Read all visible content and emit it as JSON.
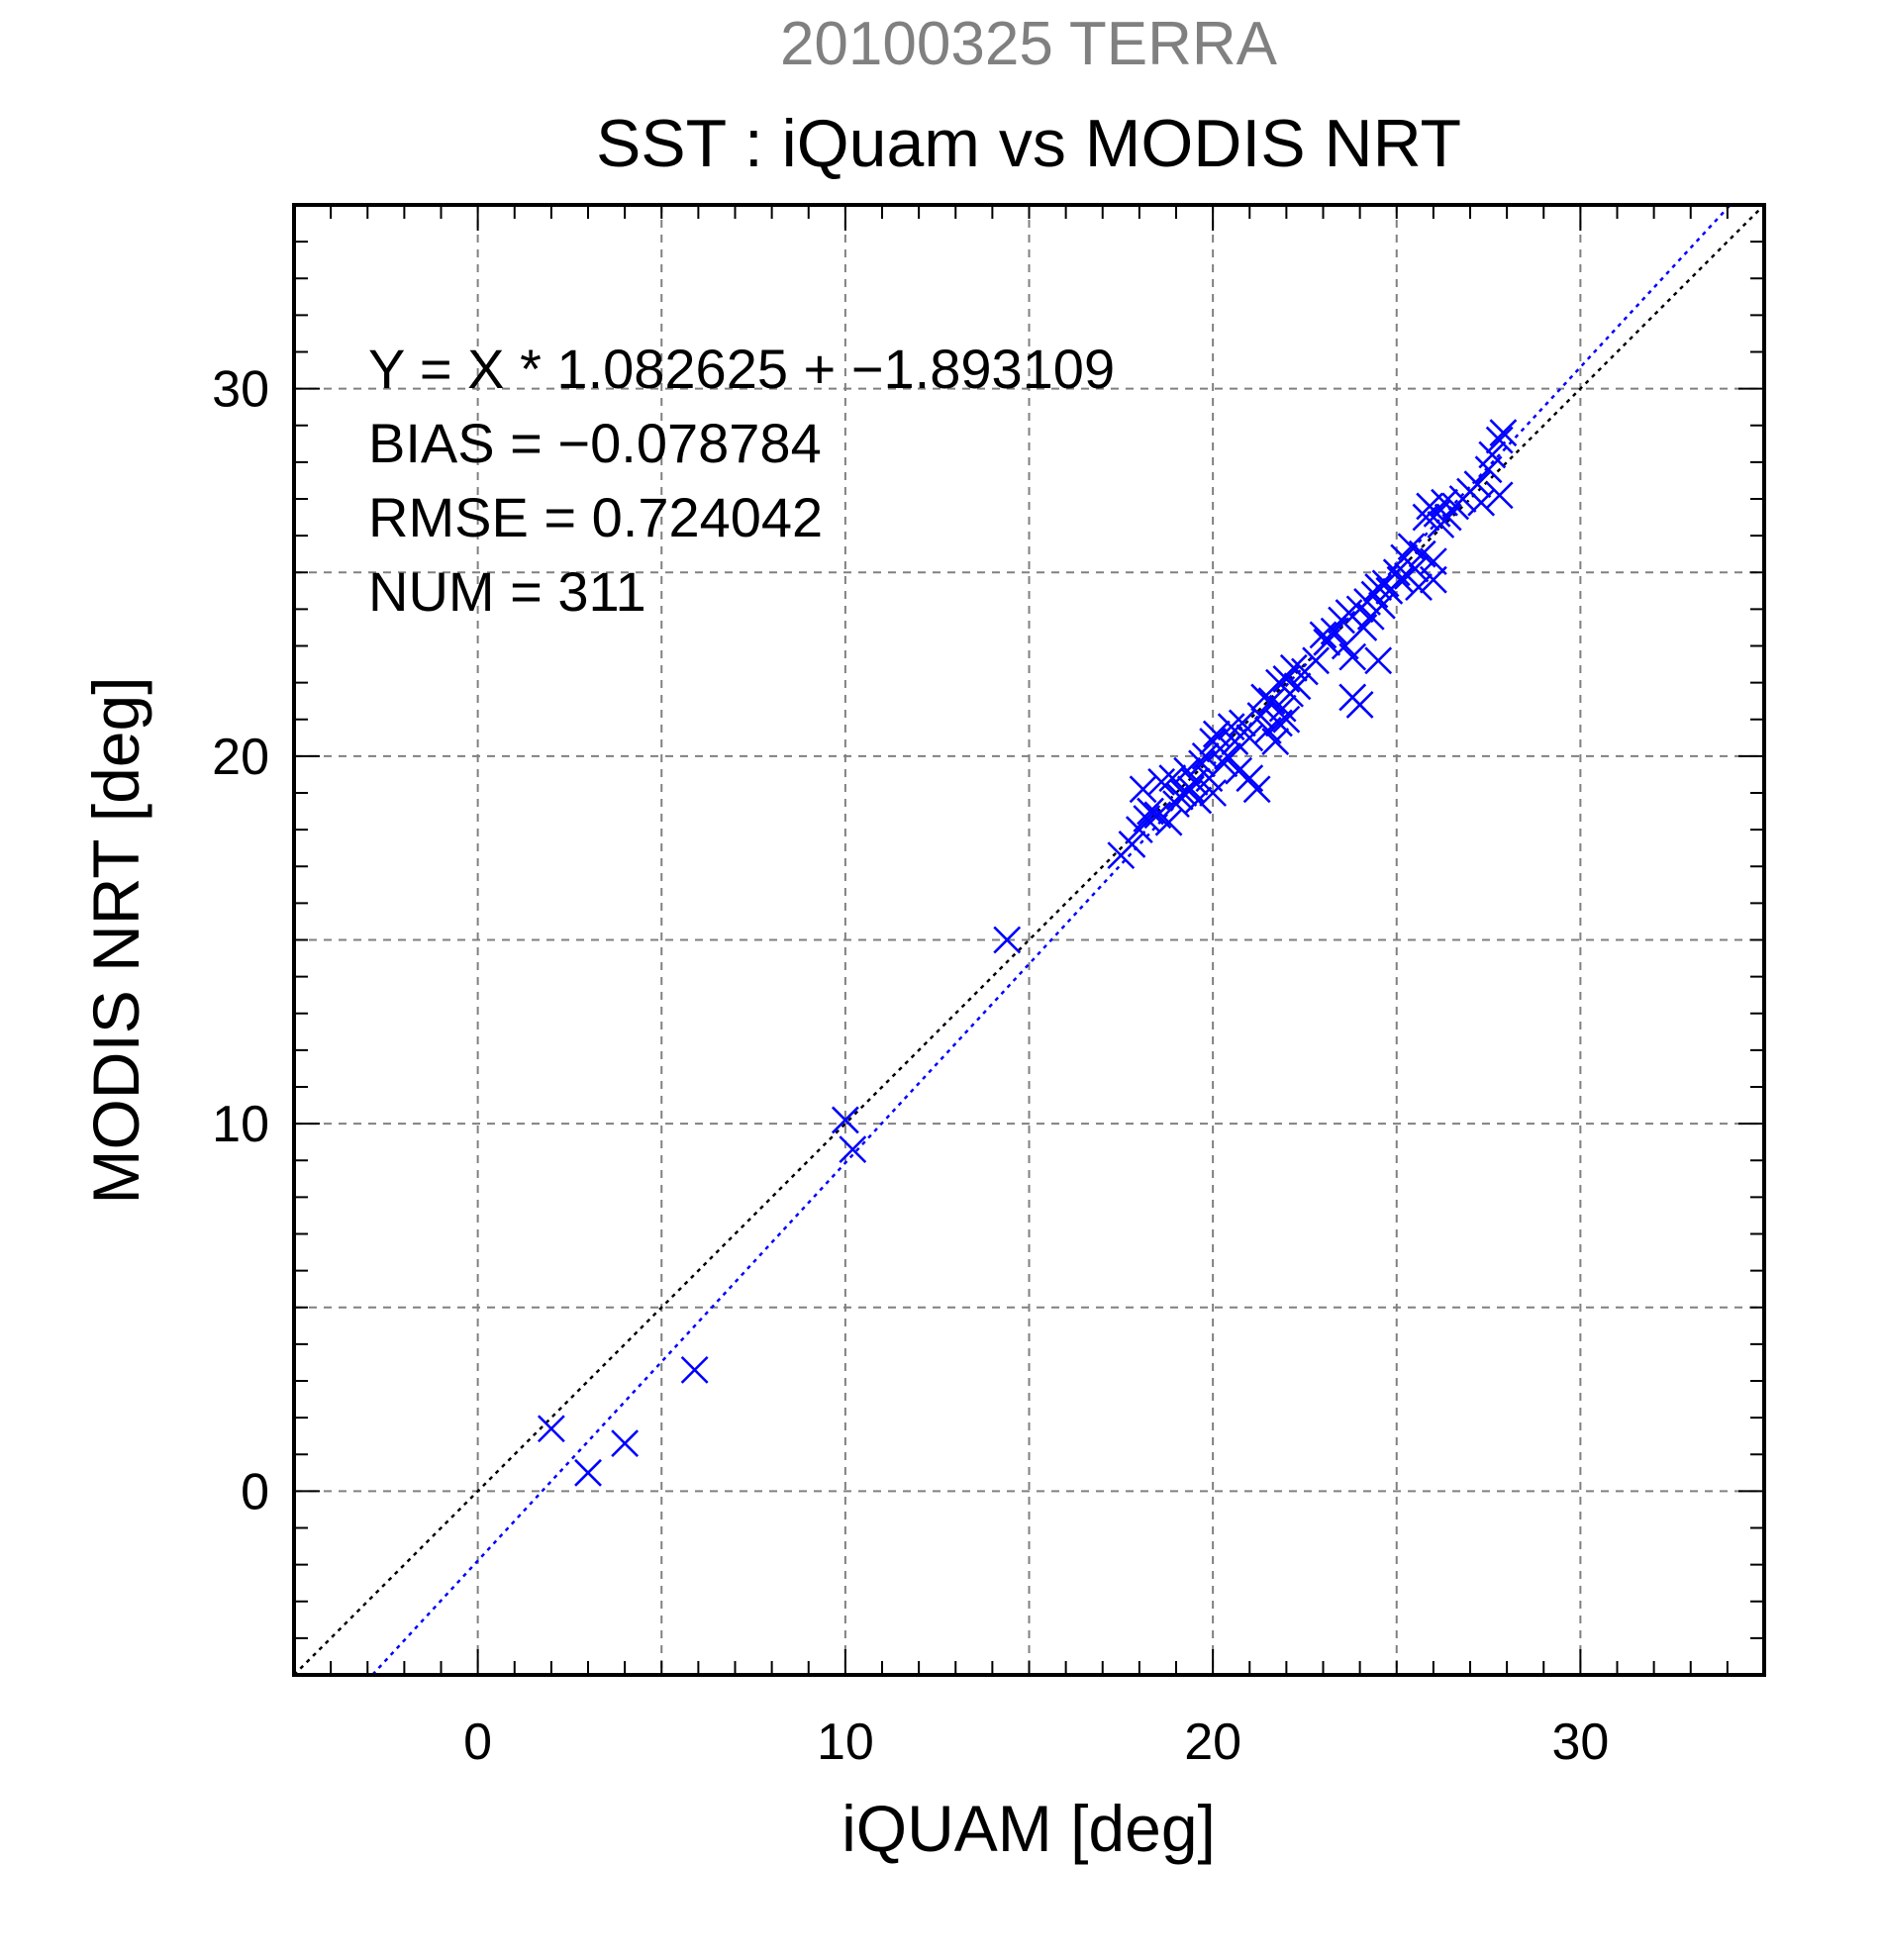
{
  "chart_data": {
    "type": "scatter",
    "title": "20100325 TERRA",
    "subtitle": "SST : iQuam vs MODIS NRT",
    "xlabel": "iQUAM [deg]",
    "ylabel": "MODIS NRT [deg]",
    "xlim": [
      -5,
      35
    ],
    "ylim": [
      -5,
      35
    ],
    "xticks": [
      0,
      10,
      20,
      30
    ],
    "yticks": [
      0,
      10,
      20,
      30
    ],
    "x_tick_labels": [
      "0",
      "10",
      "20",
      "30"
    ],
    "y_tick_labels": [
      "0",
      "10",
      "20",
      "30"
    ],
    "grid": true,
    "marker": "x",
    "colors": {
      "points": "#0000ff",
      "fit_line": "#0000ff",
      "one_to_one": "#000000",
      "grid": "#808080"
    },
    "stats": [
      "Y = X * 1.082625 + −1.893109",
      "BIAS = −0.078784",
      "RMSE = 0.724042",
      "NUM = 311"
    ],
    "fit": {
      "slope": 1.082625,
      "intercept": -1.893109
    },
    "reference_line": {
      "slope": 1,
      "intercept": 0
    },
    "points": [
      [
        2.0,
        1.7
      ],
      [
        3.0,
        0.5
      ],
      [
        4.0,
        1.3
      ],
      [
        5.9,
        3.3
      ],
      [
        10.0,
        10.1
      ],
      [
        10.2,
        9.3
      ],
      [
        14.4,
        15.0
      ],
      [
        17.5,
        17.3
      ],
      [
        17.8,
        17.6
      ],
      [
        18.0,
        18.0
      ],
      [
        18.2,
        18.3
      ],
      [
        18.1,
        19.1
      ],
      [
        18.3,
        18.5
      ],
      [
        18.5,
        18.4
      ],
      [
        18.6,
        19.3
      ],
      [
        18.8,
        18.2
      ],
      [
        18.9,
        19.4
      ],
      [
        19.0,
        18.7
      ],
      [
        19.1,
        18.9
      ],
      [
        19.2,
        19.0
      ],
      [
        19.3,
        19.6
      ],
      [
        19.4,
        19.1
      ],
      [
        19.5,
        19.3
      ],
      [
        19.6,
        18.8
      ],
      [
        19.7,
        19.8
      ],
      [
        19.8,
        20.0
      ],
      [
        19.9,
        19.4
      ],
      [
        20.0,
        20.4
      ],
      [
        20.0,
        19.0
      ],
      [
        20.1,
        20.6
      ],
      [
        20.2,
        20.2
      ],
      [
        20.3,
        19.8
      ],
      [
        20.4,
        20.0
      ],
      [
        20.5,
        20.8
      ],
      [
        20.6,
        20.4
      ],
      [
        20.7,
        19.6
      ],
      [
        20.8,
        20.9
      ],
      [
        21.0,
        20.5
      ],
      [
        21.0,
        19.4
      ],
      [
        21.2,
        19.1
      ],
      [
        21.3,
        21.1
      ],
      [
        21.4,
        21.6
      ],
      [
        21.5,
        20.7
      ],
      [
        21.6,
        21.5
      ],
      [
        21.7,
        20.4
      ],
      [
        21.8,
        22.0
      ],
      [
        21.9,
        21.3
      ],
      [
        22.0,
        22.1
      ],
      [
        22.1,
        21.7
      ],
      [
        22.2,
        22.4
      ],
      [
        22.3,
        21.9
      ],
      [
        22.5,
        22.3
      ],
      [
        22.0,
        21.0
      ],
      [
        21.8,
        20.9
      ],
      [
        22.8,
        22.6
      ],
      [
        23.0,
        23.3
      ],
      [
        23.1,
        23.1
      ],
      [
        23.3,
        23.4
      ],
      [
        23.5,
        23.7
      ],
      [
        23.6,
        23.0
      ],
      [
        23.7,
        23.9
      ],
      [
        23.8,
        22.7
      ],
      [
        23.8,
        21.6
      ],
      [
        24.0,
        21.4
      ],
      [
        24.0,
        24.0
      ],
      [
        24.1,
        23.5
      ],
      [
        24.2,
        24.2
      ],
      [
        24.3,
        23.8
      ],
      [
        24.4,
        24.4
      ],
      [
        24.5,
        22.6
      ],
      [
        24.5,
        24.6
      ],
      [
        24.6,
        24.1
      ],
      [
        24.7,
        24.7
      ],
      [
        24.8,
        24.5
      ],
      [
        25.0,
        25.0
      ],
      [
        25.1,
        24.8
      ],
      [
        25.2,
        25.4
      ],
      [
        25.3,
        24.9
      ],
      [
        25.4,
        25.7
      ],
      [
        25.5,
        25.1
      ],
      [
        25.6,
        24.6
      ],
      [
        25.7,
        25.5
      ],
      [
        25.8,
        26.5
      ],
      [
        25.9,
        26.8
      ],
      [
        26.0,
        24.8
      ],
      [
        26.0,
        25.3
      ],
      [
        26.1,
        26.6
      ],
      [
        26.2,
        26.3
      ],
      [
        26.3,
        26.9
      ],
      [
        26.4,
        26.5
      ],
      [
        26.6,
        26.8
      ],
      [
        26.8,
        27.0
      ],
      [
        27.0,
        27.2
      ],
      [
        27.2,
        27.4
      ],
      [
        27.3,
        26.9
      ],
      [
        27.5,
        27.8
      ],
      [
        27.6,
        28.2
      ],
      [
        27.8,
        28.6
      ],
      [
        27.8,
        27.1
      ],
      [
        27.9,
        28.8
      ]
    ]
  }
}
